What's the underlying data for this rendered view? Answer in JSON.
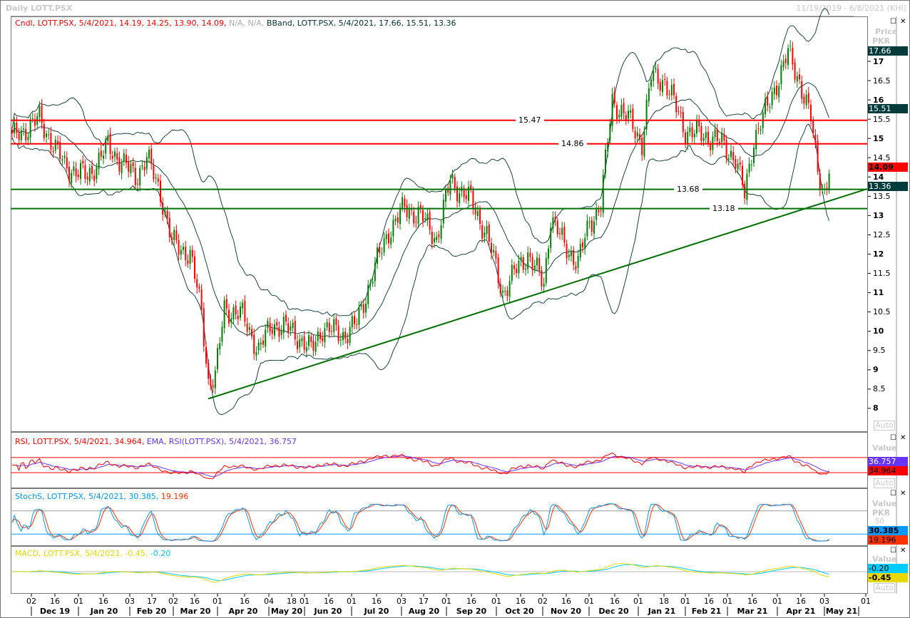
{
  "header": {
    "title": "Daily LOTT.PSX",
    "date_range": "11/19/2019 - 6/8/2021 (KHI)"
  },
  "legends": {
    "main_cndl": "Cndl, LOTT.PSX, 5/4/2021, 14.19, 14.25, 13.90, 14.09,",
    "main_na": "N/A, N/A,",
    "main_bband": "BBand, LOTT.PSX, 5/4/2021, 17.66, 15.51, 13.36",
    "rsi": "RSI, LOTT.PSX, 5/4/2021, 34.964,",
    "rsi_ema": "EMA, RSI(LOTT.PSX), 5/4/2021, 36.757",
    "stoch": "StochS, LOTT.PSX, 5/4/2021, 30.385,",
    "stoch_d": "19.196",
    "macd": "MACD, LOTT.PSX, 5/4/2021, -0.45,",
    "macd_sig": "-0.20"
  },
  "axis": {
    "price_title": "Price",
    "price_unit": "PKR",
    "value_title": "Value",
    "auto": "Auto",
    "price_ticks": [
      "17",
      "16.5",
      "16",
      "15.5",
      "15",
      "14.5",
      "14",
      "13.5",
      "13",
      "12.5",
      "12",
      "11.5",
      "11",
      "10.5",
      "10",
      "9.5",
      "9",
      "8.5",
      "8"
    ],
    "badges": {
      "bb_upper": "17.66",
      "bb_mid": "15.51",
      "last": "14.09",
      "bb_lower": "13.36",
      "rsi_ema": "36.757",
      "rsi": "34.964",
      "stoch_k": "30.385",
      "stoch_d": "19.196",
      "macd_sig": "-0.20",
      "macd": "-0.45"
    },
    "stoch_tick": "50",
    "day_ticks": [
      "02",
      "16",
      "01",
      "16",
      "03",
      "17",
      "02",
      "16",
      "01",
      "16",
      "04",
      "18",
      "01",
      "16",
      "01",
      "16",
      "03",
      "17",
      "01",
      "16",
      "01",
      "16",
      "02",
      "16",
      "01",
      "16",
      "01",
      "18",
      "01",
      "16",
      "01",
      "16",
      "01",
      "16",
      "03",
      "01"
    ],
    "months": [
      "Dec 19",
      "Jan 20",
      "Feb 20",
      "Mar 20",
      "Apr 20",
      "May 20",
      "Jun 20",
      "Jul 20",
      "Aug 20",
      "Sep 20",
      "Oct 20",
      "Nov 20",
      "Dec 20",
      "Jan 21",
      "Feb 21",
      "Mar 21",
      "Apr 21",
      "May 21"
    ]
  },
  "colors": {
    "up": "#008000",
    "down": "#ff0000",
    "support": "#007000",
    "resistance": "#ff0000",
    "bb": "#003030",
    "rsi": "#ff0000",
    "rsi_ema": "#6633ff",
    "stoch_k": "#0099ff",
    "stoch_d": "#ff3300",
    "macd": "#e6d800",
    "macd_sig": "#00ccff"
  },
  "chart_data": {
    "type": "candlestick",
    "title": "Daily LOTT.PSX",
    "ylabel": "Price PKR",
    "ylim": [
      7.6,
      17.9
    ],
    "levels": [
      {
        "label": "15.47",
        "value": 15.47,
        "kind": "resistance"
      },
      {
        "label": "14.86",
        "value": 14.86,
        "kind": "resistance"
      },
      {
        "label": "13.68",
        "value": 13.68,
        "kind": "support"
      },
      {
        "label": "13.18",
        "value": 13.18,
        "kind": "support"
      }
    ],
    "trendline": {
      "from": [
        86,
        8.25
      ],
      "to": [
        374,
        13.68
      ]
    },
    "close_keypoints": [
      [
        0,
        15.0
      ],
      [
        12,
        15.5
      ],
      [
        23,
        14.3
      ],
      [
        33,
        14.0
      ],
      [
        42,
        14.8
      ],
      [
        54,
        14.0
      ],
      [
        59,
        14.5
      ],
      [
        65,
        13.6
      ],
      [
        70,
        12.3
      ],
      [
        78,
        12.0
      ],
      [
        83,
        10.5
      ],
      [
        86,
        8.7
      ],
      [
        89,
        8.8
      ],
      [
        93,
        10.6
      ],
      [
        101,
        10.4
      ],
      [
        108,
        9.5
      ],
      [
        114,
        10.2
      ],
      [
        123,
        10.0
      ],
      [
        131,
        9.5
      ],
      [
        136,
        10.1
      ],
      [
        145,
        9.9
      ],
      [
        151,
        10.2
      ],
      [
        158,
        11.5
      ],
      [
        165,
        12.6
      ],
      [
        172,
        13.2
      ],
      [
        179,
        13.0
      ],
      [
        186,
        12.4
      ],
      [
        192,
        13.9
      ],
      [
        201,
        13.4
      ],
      [
        208,
        12.5
      ],
      [
        215,
        11.0
      ],
      [
        220,
        11.5
      ],
      [
        226,
        12.0
      ],
      [
        233,
        11.2
      ],
      [
        236,
        13.0
      ],
      [
        242,
        12.2
      ],
      [
        248,
        11.8
      ],
      [
        253,
        12.8
      ],
      [
        258,
        13.3
      ],
      [
        263,
        16.0
      ],
      [
        270,
        15.5
      ],
      [
        276,
        14.9
      ],
      [
        280,
        16.6
      ],
      [
        286,
        16.5
      ],
      [
        295,
        15.2
      ],
      [
        308,
        15.0
      ],
      [
        317,
        14.5
      ],
      [
        321,
        13.5
      ],
      [
        325,
        15.0
      ],
      [
        331,
        15.8
      ],
      [
        336,
        16.6
      ],
      [
        340,
        17.2
      ],
      [
        345,
        16.5
      ],
      [
        350,
        15.5
      ],
      [
        353,
        14.2
      ],
      [
        356,
        13.6
      ],
      [
        358,
        14.09
      ]
    ]
  }
}
